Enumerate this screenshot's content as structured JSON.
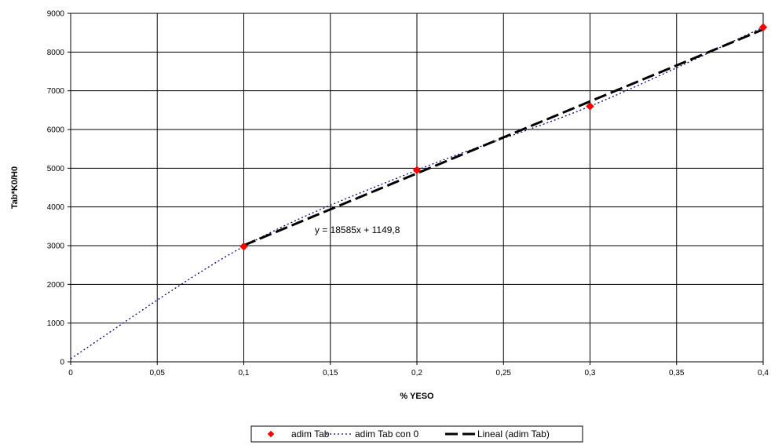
{
  "chart_data": {
    "type": "scatter",
    "title": "",
    "xlabel": "% YESO",
    "ylabel": "Tab*K0/H0",
    "xlim": [
      0,
      0.4
    ],
    "ylim": [
      0,
      9000
    ],
    "x_ticks": [
      0,
      0.05,
      0.1,
      0.15,
      0.2,
      0.25,
      0.3,
      0.35,
      0.4
    ],
    "x_tick_labels": [
      "0",
      "0,05",
      "0,1",
      "0,15",
      "0,2",
      "0,25",
      "0,3",
      "0,35",
      "0,4"
    ],
    "y_ticks": [
      0,
      1000,
      2000,
      3000,
      4000,
      5000,
      6000,
      7000,
      8000,
      9000
    ],
    "y_tick_labels": [
      "0",
      "1000",
      "2000",
      "3000",
      "4000",
      "5000",
      "6000",
      "7000",
      "8000",
      "9000"
    ],
    "grid": true,
    "legend_position": "bottom",
    "series": [
      {
        "name": "adim Tab",
        "style": "markers",
        "marker": "diamond",
        "color": "#ff0000",
        "x": [
          0.1,
          0.2,
          0.3,
          0.4
        ],
        "y": [
          2980,
          4950,
          6600,
          8640
        ]
      },
      {
        "name": "adim Tab con 0",
        "style": "dotted-line",
        "color": "#000080",
        "x": [
          0,
          0.1,
          0.2,
          0.3,
          0.4
        ],
        "y": [
          80,
          2980,
          4950,
          6600,
          8640
        ]
      },
      {
        "name": "Lineal (adim Tab)",
        "style": "dashed-line",
        "color": "#000000",
        "x": [
          0.1,
          0.4
        ],
        "y": [
          3008.3,
          8583.8
        ]
      }
    ],
    "annotations": [
      {
        "text": "y = 18585x + 1149,8",
        "x": 0.141,
        "y": 3320
      }
    ]
  }
}
